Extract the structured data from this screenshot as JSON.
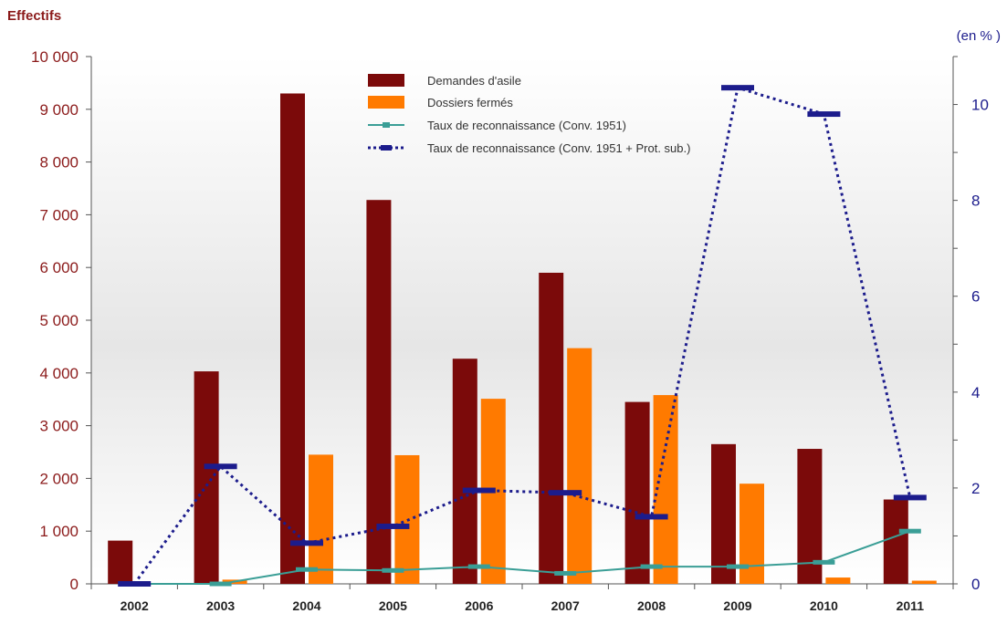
{
  "chart_data": {
    "type": "bar",
    "left_axis_title": "Effectifs",
    "right_axis_title": "(en % )",
    "categories": [
      "2002",
      "2003",
      "2004",
      "2005",
      "2006",
      "2007",
      "2008",
      "2009",
      "2010",
      "2011"
    ],
    "left_ylim": [
      0,
      10000
    ],
    "left_ticks": [
      0,
      1000,
      2000,
      3000,
      4000,
      5000,
      6000,
      7000,
      8000,
      9000,
      10000
    ],
    "left_tick_labels": [
      "0",
      "1 000",
      "2 000",
      "3 000",
      "4 000",
      "5 000",
      "6 000",
      "7 000",
      "8 000",
      "9 000",
      "10 000"
    ],
    "right_ylim": [
      0,
      11
    ],
    "right_ticks": [
      0,
      2,
      4,
      6,
      8,
      10
    ],
    "right_tick_labels": [
      "0",
      "2",
      "4",
      "6",
      "8",
      "10"
    ],
    "grid": false,
    "legend_position": "top-center",
    "series": [
      {
        "name": "Demandes d'asile",
        "kind": "bar",
        "axis": "left",
        "color": "#7b0a0a",
        "values": [
          820,
          4030,
          9300,
          7280,
          4270,
          5900,
          3450,
          2650,
          2560,
          1600
        ]
      },
      {
        "name": "Dossiers fermés",
        "kind": "bar",
        "axis": "left",
        "color": "#ff7a00",
        "values": [
          0,
          80,
          2450,
          2440,
          3510,
          4470,
          3580,
          1900,
          120,
          60
        ]
      },
      {
        "name": "Taux de reconnaissance (Conv. 1951)",
        "kind": "line",
        "axis": "right",
        "color": "#3a9e96",
        "values": [
          0,
          0,
          0.3,
          0.28,
          0.36,
          0.22,
          0.36,
          0.36,
          0.45,
          1.1
        ]
      },
      {
        "name": "Taux de reconnaissance (Conv. 1951 + Prot. sub.)",
        "kind": "line",
        "axis": "right",
        "color": "#1c1c8c",
        "values": [
          0,
          2.45,
          0.85,
          1.2,
          1.95,
          1.9,
          1.4,
          10.35,
          9.8,
          1.8
        ]
      }
    ]
  }
}
